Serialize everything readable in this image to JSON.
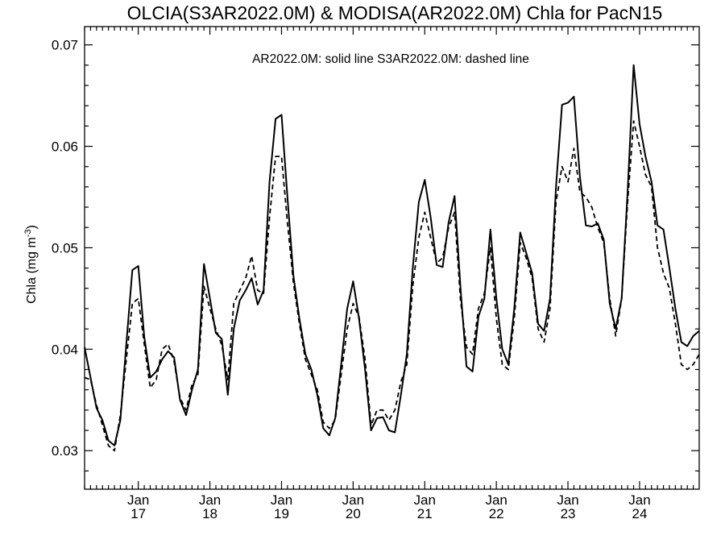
{
  "chart_data": {
    "type": "line",
    "title": "OLCIA(S3AR2022.0M) & MODISA(AR2022.0M)  Chla for PacN15",
    "annotation": "AR2022.0M: solid line   S3AR2022.0M: dashed line",
    "ylabel_main": "Chla (mg m",
    "ylabel_sup": "-3",
    "ylabel_close": ")",
    "xlabel": "",
    "ylim": [
      0.0262,
      0.0718
    ],
    "xlim": [
      2016.25,
      2024.833
    ],
    "y_ticks": [
      0.03,
      0.04,
      0.05,
      0.06,
      0.07
    ],
    "y_tick_labels": [
      "0.03",
      "0.04",
      "0.05",
      "0.06",
      "0.07"
    ],
    "x_ticks": [
      2017,
      2018,
      2019,
      2020,
      2021,
      2022,
      2023,
      2024
    ],
    "x_tick_labels": [
      {
        "month": "Jan",
        "year": "17"
      },
      {
        "month": "Jan",
        "year": "18"
      },
      {
        "month": "Jan",
        "year": "19"
      },
      {
        "month": "Jan",
        "year": "20"
      },
      {
        "month": "Jan",
        "year": "21"
      },
      {
        "month": "Jan",
        "year": "22"
      },
      {
        "month": "Jan",
        "year": "23"
      },
      {
        "month": "Jan",
        "year": "24"
      }
    ],
    "series": [
      {
        "name": "AR2022.0M",
        "style": "solid",
        "color": "#000000",
        "x": [
          2016.25,
          2016.333,
          2016.417,
          2016.5,
          2016.583,
          2016.667,
          2016.75,
          2016.833,
          2016.917,
          2017.0,
          2017.083,
          2017.167,
          2017.25,
          2017.333,
          2017.417,
          2017.5,
          2017.583,
          2017.667,
          2017.75,
          2017.833,
          2017.917,
          2018.0,
          2018.083,
          2018.167,
          2018.25,
          2018.333,
          2018.417,
          2018.5,
          2018.583,
          2018.667,
          2018.75,
          2018.833,
          2018.917,
          2019.0,
          2019.083,
          2019.167,
          2019.25,
          2019.333,
          2019.417,
          2019.5,
          2019.583,
          2019.667,
          2019.75,
          2019.833,
          2019.917,
          2020.0,
          2020.083,
          2020.167,
          2020.25,
          2020.333,
          2020.417,
          2020.5,
          2020.583,
          2020.667,
          2020.75,
          2020.833,
          2020.917,
          2021.0,
          2021.083,
          2021.167,
          2021.25,
          2021.333,
          2021.417,
          2021.5,
          2021.583,
          2021.667,
          2021.75,
          2021.833,
          2021.917,
          2022.0,
          2022.083,
          2022.167,
          2022.25,
          2022.333,
          2022.417,
          2022.5,
          2022.583,
          2022.667,
          2022.75,
          2022.833,
          2022.917,
          2023.0,
          2023.083,
          2023.167,
          2023.25,
          2023.333,
          2023.417,
          2023.5,
          2023.583,
          2023.667,
          2023.75,
          2023.833,
          2023.917,
          2024.0,
          2024.083,
          2024.167,
          2024.25,
          2024.333,
          2024.417,
          2024.5,
          2024.583,
          2024.667,
          2024.75,
          2024.833
        ],
        "values": [
          0.0402,
          0.0372,
          0.0342,
          0.033,
          0.031,
          0.0305,
          0.033,
          0.0405,
          0.0478,
          0.0482,
          0.0412,
          0.0372,
          0.0378,
          0.039,
          0.0398,
          0.0392,
          0.035,
          0.0335,
          0.036,
          0.038,
          0.0484,
          0.045,
          0.0416,
          0.041,
          0.0355,
          0.042,
          0.0448,
          0.0458,
          0.047,
          0.0444,
          0.0458,
          0.0565,
          0.0627,
          0.0631,
          0.055,
          0.0472,
          0.043,
          0.0395,
          0.038,
          0.0355,
          0.0322,
          0.0315,
          0.0332,
          0.0385,
          0.044,
          0.0467,
          0.043,
          0.038,
          0.032,
          0.0332,
          0.0333,
          0.032,
          0.0318,
          0.0355,
          0.0395,
          0.048,
          0.0545,
          0.0567,
          0.053,
          0.0483,
          0.0481,
          0.0525,
          0.0551,
          0.046,
          0.0383,
          0.0378,
          0.0432,
          0.045,
          0.0518,
          0.045,
          0.04,
          0.0385,
          0.044,
          0.0515,
          0.0495,
          0.0475,
          0.0425,
          0.0418,
          0.045,
          0.056,
          0.0641,
          0.0643,
          0.0649,
          0.057,
          0.0522,
          0.0521,
          0.0524,
          0.0508,
          0.0445,
          0.042,
          0.045,
          0.0555,
          0.068,
          0.0622,
          0.059,
          0.0565,
          0.0522,
          0.0518,
          0.048,
          0.044,
          0.0407,
          0.0403,
          0.0413,
          0.0418
        ]
      },
      {
        "name": "S3AR2022.0M",
        "style": "dashed",
        "color": "#000000",
        "x": [
          2016.25,
          2016.333,
          2016.417,
          2016.5,
          2016.583,
          2016.667,
          2016.75,
          2016.833,
          2016.917,
          2017.0,
          2017.083,
          2017.167,
          2017.25,
          2017.333,
          2017.417,
          2017.5,
          2017.583,
          2017.667,
          2017.75,
          2017.833,
          2017.917,
          2018.0,
          2018.083,
          2018.167,
          2018.25,
          2018.333,
          2018.417,
          2018.5,
          2018.583,
          2018.667,
          2018.75,
          2018.833,
          2018.917,
          2019.0,
          2019.083,
          2019.167,
          2019.25,
          2019.333,
          2019.417,
          2019.5,
          2019.583,
          2019.667,
          2019.75,
          2019.833,
          2019.917,
          2020.0,
          2020.083,
          2020.167,
          2020.25,
          2020.333,
          2020.417,
          2020.5,
          2020.583,
          2020.667,
          2020.75,
          2020.833,
          2020.917,
          2021.0,
          2021.083,
          2021.167,
          2021.25,
          2021.333,
          2021.417,
          2021.5,
          2021.583,
          2021.667,
          2021.75,
          2021.833,
          2021.917,
          2022.0,
          2022.083,
          2022.167,
          2022.25,
          2022.333,
          2022.417,
          2022.5,
          2022.583,
          2022.667,
          2022.75,
          2022.833,
          2022.917,
          2023.0,
          2023.083,
          2023.167,
          2023.25,
          2023.333,
          2023.417,
          2023.5,
          2023.583,
          2023.667,
          2023.75,
          2023.833,
          2023.917,
          2024.0,
          2024.083,
          2024.167,
          2024.25,
          2024.333,
          2024.417,
          2024.5,
          2024.583,
          2024.667,
          2024.75,
          2024.833
        ],
        "values": [
          0.0372,
          0.037,
          0.0345,
          0.0325,
          0.0305,
          0.03,
          0.0335,
          0.039,
          0.0445,
          0.045,
          0.0405,
          0.0362,
          0.037,
          0.04,
          0.0405,
          0.0388,
          0.0352,
          0.034,
          0.0365,
          0.0375,
          0.0462,
          0.044,
          0.042,
          0.0404,
          0.037,
          0.0445,
          0.0458,
          0.047,
          0.0492,
          0.0458,
          0.0455,
          0.053,
          0.059,
          0.059,
          0.0525,
          0.0465,
          0.0425,
          0.039,
          0.0375,
          0.036,
          0.0328,
          0.0322,
          0.033,
          0.0375,
          0.042,
          0.0445,
          0.0432,
          0.039,
          0.0325,
          0.034,
          0.034,
          0.033,
          0.034,
          0.0368,
          0.0385,
          0.0462,
          0.051,
          0.0535,
          0.051,
          0.0485,
          0.049,
          0.052,
          0.0535,
          0.0448,
          0.0402,
          0.0395,
          0.044,
          0.0455,
          0.05,
          0.043,
          0.0385,
          0.038,
          0.043,
          0.0505,
          0.049,
          0.047,
          0.042,
          0.0407,
          0.044,
          0.0545,
          0.058,
          0.0565,
          0.0598,
          0.0555,
          0.055,
          0.054,
          0.052,
          0.0505,
          0.045,
          0.0413,
          0.045,
          0.0545,
          0.0625,
          0.06,
          0.0572,
          0.056,
          0.05,
          0.0475,
          0.046,
          0.0425,
          0.0385,
          0.038,
          0.0385,
          0.0395
        ]
      }
    ]
  }
}
